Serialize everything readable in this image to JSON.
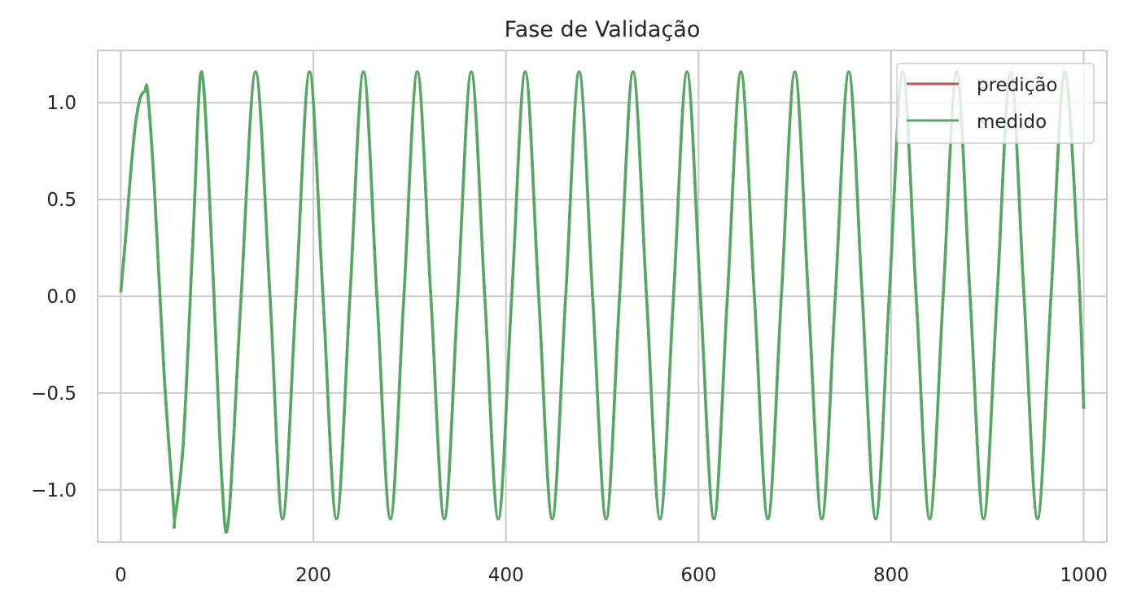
{
  "chart_data": {
    "type": "line",
    "title": "Fase de Validação",
    "xlabel": "",
    "ylabel": "",
    "xlim": [
      -24,
      1024
    ],
    "ylim": [
      -1.27,
      1.27
    ],
    "x_ticks": [
      0,
      200,
      400,
      600,
      800,
      1000
    ],
    "x_tick_labels": [
      "0",
      "200",
      "400",
      "600",
      "800",
      "1000"
    ],
    "y_ticks": [
      1.0,
      0.5,
      0.0,
      -0.5,
      -1.0
    ],
    "y_tick_labels": [
      "1.0",
      "0.5",
      "0.0",
      "−0.5",
      "−1.0"
    ],
    "grid": true,
    "legend": {
      "placement": "top-right",
      "entries": [
        "predição",
        "medido"
      ]
    },
    "x": [
      0,
      5,
      10,
      15,
      20,
      25,
      28,
      35,
      45,
      55,
      56,
      65,
      75,
      84,
      95,
      105,
      112,
      125,
      140,
      155,
      168,
      182,
      196,
      210,
      224,
      238,
      252,
      266,
      280,
      294,
      308,
      322,
      336,
      350,
      364,
      378,
      392,
      406,
      420,
      434,
      448,
      462,
      476,
      490,
      504,
      518,
      532,
      546,
      560,
      574,
      588,
      602,
      616,
      630,
      644,
      658,
      672,
      686,
      700,
      714,
      728,
      742,
      756,
      770,
      784,
      798,
      812,
      826,
      840,
      854,
      868,
      882,
      896,
      910,
      924,
      938,
      952,
      966,
      980,
      994,
      1000
    ],
    "series": [
      {
        "name": "predição",
        "color": "#c44e52",
        "values": [
          0.02,
          0.3,
          0.62,
          0.88,
          1.02,
          1.06,
          1.05,
          0.55,
          -0.4,
          -1.1,
          -1.15,
          -0.75,
          0.3,
          1.16,
          0.2,
          -0.95,
          -1.15,
          0.0,
          1.16,
          0.0,
          -1.15,
          0.0,
          1.16,
          0.0,
          -1.15,
          0.0,
          1.16,
          0.0,
          -1.15,
          0.0,
          1.16,
          0.0,
          -1.15,
          0.0,
          1.16,
          0.0,
          -1.15,
          0.0,
          1.16,
          0.0,
          -1.15,
          0.0,
          1.16,
          0.0,
          -1.15,
          0.0,
          1.16,
          0.0,
          -1.15,
          0.0,
          1.16,
          0.0,
          -1.15,
          0.0,
          1.16,
          0.0,
          -1.15,
          0.0,
          1.16,
          0.0,
          -1.15,
          0.0,
          1.16,
          0.0,
          -1.15,
          0.0,
          1.16,
          0.0,
          -1.15,
          0.0,
          1.16,
          0.0,
          -1.15,
          0.0,
          1.16,
          0.0,
          -1.15,
          0.0,
          1.16,
          0.2,
          -0.58
        ]
      },
      {
        "name": "medido",
        "color": "#55a868",
        "values": [
          0.02,
          0.3,
          0.62,
          0.88,
          1.02,
          1.06,
          1.05,
          0.55,
          -0.4,
          -1.1,
          -1.15,
          -0.75,
          0.3,
          1.16,
          0.2,
          -0.95,
          -1.15,
          0.0,
          1.16,
          0.0,
          -1.15,
          0.0,
          1.16,
          0.0,
          -1.15,
          0.0,
          1.16,
          0.0,
          -1.15,
          0.0,
          1.16,
          0.0,
          -1.15,
          0.0,
          1.16,
          0.0,
          -1.15,
          0.0,
          1.16,
          0.0,
          -1.15,
          0.0,
          1.16,
          0.0,
          -1.15,
          0.0,
          1.16,
          0.0,
          -1.15,
          0.0,
          1.16,
          0.0,
          -1.15,
          0.0,
          1.16,
          0.0,
          -1.15,
          0.0,
          1.16,
          0.0,
          -1.15,
          0.0,
          1.16,
          0.0,
          -1.15,
          0.0,
          1.16,
          0.0,
          -1.15,
          0.0,
          1.16,
          0.0,
          -1.15,
          0.0,
          1.16,
          0.0,
          -1.15,
          0.0,
          1.16,
          0.2,
          -0.58
        ]
      }
    ]
  }
}
